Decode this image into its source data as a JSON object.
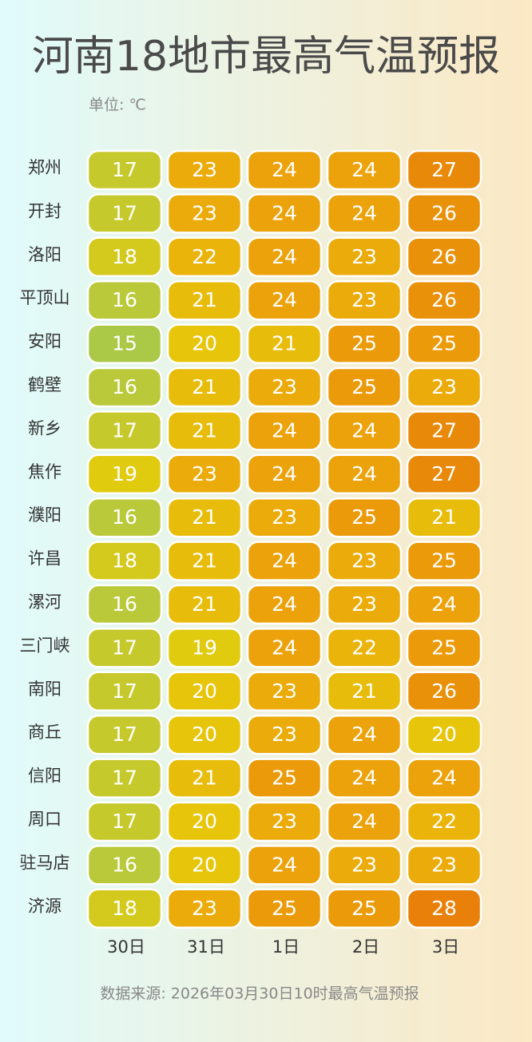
{
  "chart_data": {
    "type": "heatmap",
    "title": "河南18地市最高气温预报",
    "subtitle": "单位: ℃",
    "source": "数据来源: 2026年03月30日10时最高气温预报",
    "x": [
      "30日",
      "31日",
      "1日",
      "2日",
      "3日"
    ],
    "categories": [
      "郑州",
      "开封",
      "洛阳",
      "平顶山",
      "安阳",
      "鹤壁",
      "新乡",
      "焦作",
      "濮阳",
      "许昌",
      "漯河",
      "三门峡",
      "南阳",
      "商丘",
      "信阳",
      "周口",
      "驻马店",
      "济源"
    ],
    "values": [
      [
        17,
        23,
        24,
        24,
        27
      ],
      [
        17,
        23,
        24,
        24,
        26
      ],
      [
        18,
        22,
        24,
        23,
        26
      ],
      [
        16,
        21,
        24,
        23,
        26
      ],
      [
        15,
        20,
        21,
        25,
        25
      ],
      [
        16,
        21,
        23,
        25,
        23
      ],
      [
        17,
        21,
        24,
        24,
        27
      ],
      [
        19,
        23,
        24,
        24,
        27
      ],
      [
        16,
        21,
        23,
        25,
        21
      ],
      [
        18,
        21,
        24,
        23,
        25
      ],
      [
        16,
        21,
        24,
        23,
        24
      ],
      [
        17,
        19,
        24,
        22,
        25
      ],
      [
        17,
        20,
        23,
        21,
        26
      ],
      [
        17,
        20,
        23,
        24,
        20
      ],
      [
        17,
        21,
        25,
        24,
        24
      ],
      [
        17,
        20,
        23,
        24,
        22
      ],
      [
        16,
        20,
        24,
        23,
        23
      ],
      [
        18,
        23,
        25,
        25,
        28
      ]
    ],
    "colors": [
      "#abc847",
      "#e6cb0a",
      "#eca50a",
      "#e8800a"
    ]
  }
}
